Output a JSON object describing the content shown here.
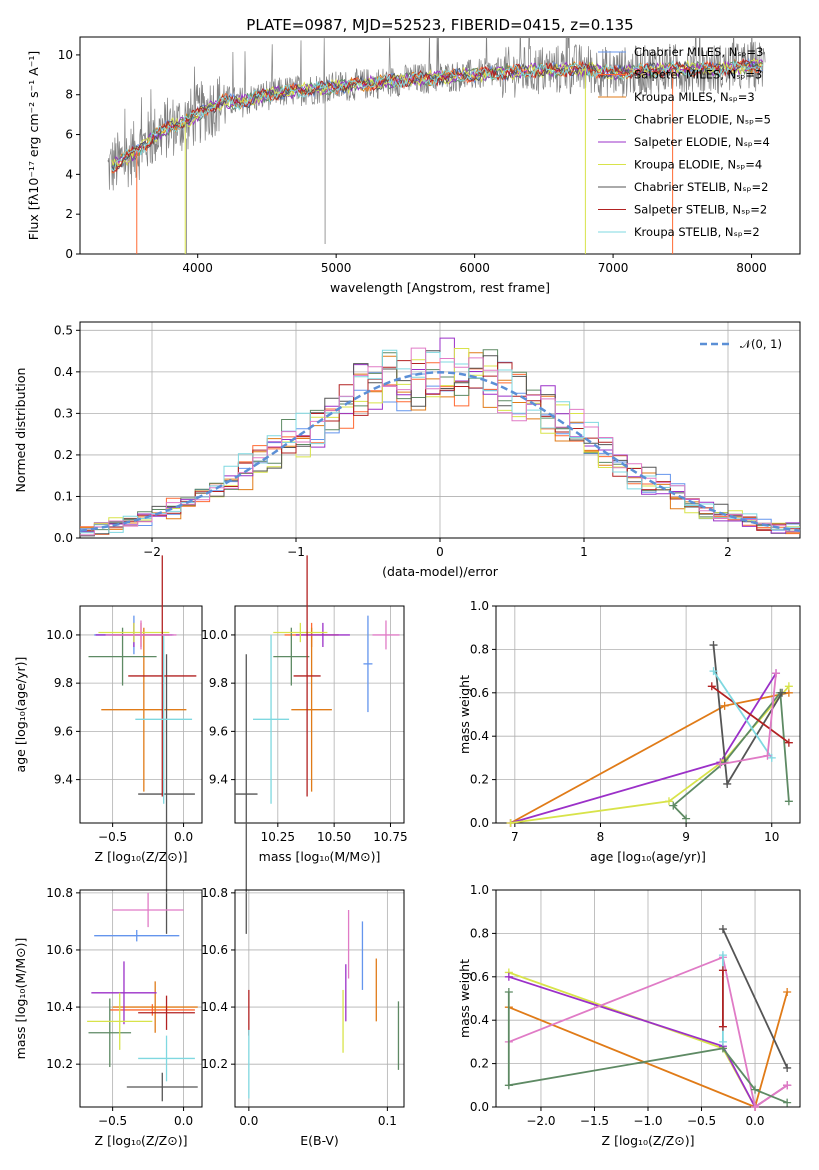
{
  "title": "PLATE=0987, MJD=52523, FIBERID=0415, z=0.135",
  "colors": {
    "chabrier_miles": "#6495ED",
    "salpeter_miles": "#FF6A33",
    "kroupa_miles": "#E07B18",
    "chabrier_elodie": "#5E8A64",
    "salpeter_elodie": "#9B30C8",
    "kroupa_elodie": "#D8E34A",
    "chabrier_stelib": "#555555",
    "salpeter_stelib": "#B22222",
    "kroupa_stelib": "#7FD8E0",
    "pink": "#E07BC6",
    "data": "#808080",
    "gauss": "#5B8FD6",
    "grid": "#B0B0B0"
  },
  "chart_data": [
    {
      "id": "spectrum",
      "type": "line",
      "title": "PLATE=0987, MJD=52523, FIBERID=0415, z=0.135",
      "xlabel": "wavelength [Angstrom, rest frame]",
      "ylabel": "Flux [fλ10⁻¹⁷ erg cm⁻² s⁻¹ A⁻¹]",
      "xlim": [
        3150,
        8350
      ],
      "ylim": [
        0,
        10.9
      ],
      "xticks": [
        "4000",
        "5000",
        "6000",
        "7000",
        "8000"
      ],
      "yticks": [
        "0",
        "2",
        "4",
        "6",
        "8",
        "10"
      ],
      "grid": false,
      "legend_position": "upper-right",
      "legend": [
        "Chabrier MILES, Nₛₚ=3",
        "Salpeter MILES, Nₛₚ=3",
        "Kroupa MILES, Nₛₚ=3",
        "Chabrier ELODIE, Nₛₚ=5",
        "Salpeter ELODIE, Nₛₚ=4",
        "Kroupa ELODIE, Nₛₚ=4",
        "Chabrier STELIB, Nₛₚ=2",
        "Salpeter STELIB, Nₛₚ=2",
        "Kroupa STELIB, Nₛₚ=2"
      ],
      "continuum": {
        "x": [
          3350,
          3400,
          3500,
          3600,
          3700,
          3800,
          3900,
          4000,
          4100,
          4200,
          4300,
          4500,
          4700,
          5000,
          5300,
          5600,
          6000,
          6400,
          6800,
          7000,
          7400,
          7800,
          8100
        ],
        "y": [
          4.2,
          4.5,
          4.9,
          5.4,
          6.0,
          6.4,
          6.6,
          7.0,
          7.4,
          7.7,
          7.6,
          8.0,
          8.2,
          8.4,
          8.6,
          8.8,
          9.0,
          9.2,
          9.3,
          9.1,
          9.3,
          9.3,
          9.5
        ]
      },
      "model_dropouts": [
        {
          "x": 3560,
          "series": "salpeter_miles"
        },
        {
          "x": 3910,
          "series": "kroupa_elodie"
        },
        {
          "x": 6800,
          "series": "kroupa_elodie"
        },
        {
          "x": 7430,
          "series": "salpeter_miles"
        }
      ]
    },
    {
      "id": "residuals",
      "type": "histogram",
      "xlabel": "(data-model)/error",
      "ylabel": "Normed distribution",
      "xlim": [
        -2.5,
        2.5
      ],
      "ylim": [
        0,
        0.52
      ],
      "xticks": [
        "−2",
        "−1",
        "0",
        "1",
        "2"
      ],
      "yticks": [
        "0.0",
        "0.1",
        "0.2",
        "0.3",
        "0.4",
        "0.5"
      ],
      "grid": true,
      "legend": [
        "𝒩(0, 1)"
      ],
      "bin_width": 0.1,
      "gaussian": {
        "mu": 0,
        "sigma": 1
      }
    },
    {
      "id": "age_vs_z",
      "type": "errorbar",
      "xlabel": "Z [log₁₀(Z/Z⊙)]",
      "ylabel": "age  [log₁₀(age/yr)]",
      "xlim": [
        -0.73,
        0.13
      ],
      "ylim": [
        9.22,
        10.12
      ],
      "xticks": [
        "−0.5",
        "0.0"
      ],
      "yticks": [
        "9.4",
        "9.6",
        "9.8",
        "10.0"
      ],
      "grid": true,
      "points": [
        {
          "series": "chabrier_miles",
          "x": -0.35,
          "xerr": 0.28,
          "y": 10.0,
          "yerr": 0.08
        },
        {
          "series": "salpeter_miles",
          "x": -0.3,
          "xerr": 0.2,
          "y": 10.0,
          "yerr": 0.05
        },
        {
          "series": "kroupa_miles",
          "x": -0.28,
          "xerr": 0.3,
          "y": 9.69,
          "yerr": 0.34
        },
        {
          "series": "chabrier_elodie",
          "x": -0.43,
          "xerr": 0.24,
          "y": 9.91,
          "yerr": 0.12
        },
        {
          "series": "salpeter_elodie",
          "x": -0.35,
          "xerr": 0.27,
          "y": 10.0,
          "yerr": 0.05
        },
        {
          "series": "kroupa_elodie",
          "x": -0.35,
          "xerr": 0.25,
          "y": 10.01,
          "yerr": 0.04
        },
        {
          "series": "chabrier_stelib",
          "x": -0.12,
          "xerr": 0.2,
          "y": 9.34,
          "yerr": 0.58
        },
        {
          "series": "salpeter_stelib",
          "x": -0.15,
          "xerr": 0.24,
          "y": 9.83,
          "yerr": 0.5
        },
        {
          "series": "kroupa_stelib",
          "x": -0.14,
          "xerr": 0.2,
          "y": 9.65,
          "yerr": 0.35
        },
        {
          "series": "pink",
          "x": -0.3,
          "xerr": 0.25,
          "y": 10.0,
          "yerr": 0.06
        }
      ]
    },
    {
      "id": "age_vs_mass",
      "type": "errorbar",
      "xlabel": "mass [log₁₀(M/M⊙)]",
      "ylabel": "",
      "xlim": [
        10.06,
        10.81
      ],
      "ylim": [
        9.22,
        10.12
      ],
      "xticks": [
        "10.25",
        "10.50",
        "10.75"
      ],
      "yticks": [
        "9.4",
        "9.6",
        "9.8",
        "10.0"
      ],
      "grid": true,
      "points": [
        {
          "series": "chabrier_miles",
          "x": 10.65,
          "xerr": 0.02,
          "y": 9.88,
          "yerr": 0.2
        },
        {
          "series": "salpeter_miles",
          "x": 10.4,
          "xerr": 0.12,
          "y": 10.0,
          "yerr": 0.05
        },
        {
          "series": "kroupa_miles",
          "x": 10.4,
          "xerr": 0.09,
          "y": 9.69,
          "yerr": 0.34
        },
        {
          "series": "chabrier_elodie",
          "x": 10.31,
          "xerr": 0.08,
          "y": 9.91,
          "yerr": 0.12
        },
        {
          "series": "salpeter_elodie",
          "x": 10.45,
          "xerr": 0.12,
          "y": 10.0,
          "yerr": 0.05
        },
        {
          "series": "kroupa_elodie",
          "x": 10.35,
          "xerr": 0.12,
          "y": 10.01,
          "yerr": 0.04
        },
        {
          "series": "chabrier_stelib",
          "x": 10.11,
          "xerr": 0.05,
          "y": 9.34,
          "yerr": 0.58
        },
        {
          "series": "salpeter_stelib",
          "x": 10.38,
          "xerr": 0.06,
          "y": 9.83,
          "yerr": 0.5
        },
        {
          "series": "kroupa_stelib",
          "x": 10.22,
          "xerr": 0.08,
          "y": 9.65,
          "yerr": 0.35
        },
        {
          "series": "pink",
          "x": 10.73,
          "xerr": 0.06,
          "y": 10.0,
          "yerr": 0.06
        }
      ]
    },
    {
      "id": "weight_vs_age",
      "type": "line",
      "xlabel": "age  [log₁₀(age/yr)]",
      "ylabel": "mass weight",
      "xlim": [
        6.78,
        10.33
      ],
      "ylim": [
        0,
        1
      ],
      "xticks": [
        "7",
        "8",
        "9",
        "10"
      ],
      "yticks": [
        "0.0",
        "0.2",
        "0.4",
        "0.6",
        "0.8",
        "1.0"
      ],
      "grid": true,
      "series": [
        {
          "key": "kroupa_miles",
          "x": [
            10.2,
            9.45,
            6.95
          ],
          "y": [
            0.6,
            0.54,
            0.0
          ]
        },
        {
          "key": "salpeter_elodie",
          "x": [
            10.05,
            9.4,
            6.95
          ],
          "y": [
            0.69,
            0.28,
            0.0
          ]
        },
        {
          "key": "kroupa_elodie",
          "x": [
            10.2,
            9.45,
            8.8,
            6.95
          ],
          "y": [
            0.63,
            0.29,
            0.1,
            0.0
          ]
        },
        {
          "key": "chabrier_elodie",
          "x": [
            10.2,
            10.1,
            9.45,
            8.85,
            9.0
          ],
          "y": [
            0.1,
            0.6,
            0.28,
            0.08,
            0.02
          ]
        },
        {
          "key": "chabrier_stelib",
          "x": [
            9.32,
            9.48,
            10.12
          ],
          "y": [
            0.82,
            0.18,
            0.6
          ]
        },
        {
          "key": "salpeter_stelib",
          "x": [
            9.3,
            10.2
          ],
          "y": [
            0.63,
            0.37
          ]
        },
        {
          "key": "kroupa_stelib",
          "x": [
            9.32,
            10.0
          ],
          "y": [
            0.7,
            0.3
          ]
        },
        {
          "key": "pink",
          "x": [
            9.4,
            9.95,
            10.05
          ],
          "y": [
            0.27,
            0.31,
            0.69
          ]
        }
      ]
    },
    {
      "id": "mass_vs_z",
      "type": "errorbar",
      "xlabel": "Z [log₁₀(Z/Z⊙)]",
      "ylabel": "mass [log₁₀(M/M⊙)]",
      "xlim": [
        -0.73,
        0.13
      ],
      "ylim": [
        10.05,
        10.81
      ],
      "xticks": [
        "−0.5",
        "0.0"
      ],
      "yticks": [
        "10.2",
        "10.4",
        "10.6",
        "10.8"
      ],
      "grid": true,
      "points": [
        {
          "series": "chabrier_miles",
          "x": -0.33,
          "xerr": 0.3,
          "y": 10.65,
          "yerr": 0.02
        },
        {
          "series": "salpeter_miles",
          "x": -0.22,
          "xerr": 0.3,
          "y": 10.39,
          "yerr": 0.02
        },
        {
          "series": "kroupa_miles",
          "x": -0.2,
          "xerr": 0.3,
          "y": 10.4,
          "yerr": 0.09
        },
        {
          "series": "chabrier_elodie",
          "x": -0.52,
          "xerr": 0.15,
          "y": 10.31,
          "yerr": 0.12
        },
        {
          "series": "salpeter_elodie",
          "x": -0.42,
          "xerr": 0.23,
          "y": 10.45,
          "yerr": 0.11
        },
        {
          "series": "kroupa_elodie",
          "x": -0.45,
          "xerr": 0.23,
          "y": 10.35,
          "yerr": 0.1
        },
        {
          "series": "chabrier_stelib",
          "x": -0.15,
          "xerr": 0.25,
          "y": 10.12,
          "yerr": 0.05
        },
        {
          "series": "salpeter_stelib",
          "x": -0.12,
          "xerr": 0.2,
          "y": 10.38,
          "yerr": 0.06
        },
        {
          "series": "kroupa_stelib",
          "x": -0.12,
          "xerr": 0.2,
          "y": 10.22,
          "yerr": 0.08
        },
        {
          "series": "pink",
          "x": -0.25,
          "xerr": 0.25,
          "y": 10.74,
          "yerr": 0.06
        }
      ]
    },
    {
      "id": "mass_vs_ebv",
      "type": "errorbar",
      "xlabel": "E(B-V)",
      "ylabel": "",
      "xlim": [
        -0.01,
        0.112
      ],
      "ylim": [
        10.05,
        10.81
      ],
      "xticks": [
        "0.0",
        "0.1"
      ],
      "yticks": [
        "10.2",
        "10.4",
        "10.6",
        "10.8"
      ],
      "grid": true,
      "points": [
        {
          "series": "chabrier_miles",
          "x": 0.082,
          "xerr": 0,
          "y": 10.58,
          "yerr": 0.12
        },
        {
          "series": "kroupa_miles",
          "x": 0.092,
          "xerr": 0,
          "y": 10.46,
          "yerr": 0.11
        },
        {
          "series": "salpeter_elodie",
          "x": 0.07,
          "xerr": 0,
          "y": 10.45,
          "yerr": 0.1
        },
        {
          "series": "kroupa_elodie",
          "x": 0.068,
          "xerr": 0,
          "y": 10.35,
          "yerr": 0.11
        },
        {
          "series": "chabrier_elodie",
          "x": 0.108,
          "xerr": 0,
          "y": 10.3,
          "yerr": 0.12
        },
        {
          "series": "salpeter_stelib",
          "x": 0.0,
          "xerr": 0,
          "y": 10.38,
          "yerr": 0.08
        },
        {
          "series": "kroupa_stelib",
          "x": 0.0,
          "xerr": 0,
          "y": 10.2,
          "yerr": 0.12
        },
        {
          "series": "pink",
          "x": 0.072,
          "xerr": 0,
          "y": 10.62,
          "yerr": 0.12
        }
      ]
    },
    {
      "id": "weight_vs_z",
      "type": "line",
      "xlabel": "Z [log₁₀(Z/Z⊙)]",
      "ylabel": "mass weight",
      "xlim": [
        -2.42,
        0.42
      ],
      "ylim": [
        0,
        1
      ],
      "xticks": [
        "−2.0",
        "−1.5",
        "−1.0",
        "−0.5",
        "0.0"
      ],
      "yticks": [
        "0.0",
        "0.2",
        "0.4",
        "0.6",
        "0.8",
        "1.0"
      ],
      "grid": true,
      "series": [
        {
          "key": "kroupa_miles",
          "x": [
            0.3,
            0.0,
            -2.3
          ],
          "y": [
            0.53,
            0.0,
            0.46
          ]
        },
        {
          "key": "kroupa_elodie",
          "x": [
            -2.3,
            -0.3,
            0.0,
            0.3
          ],
          "y": [
            0.62,
            0.27,
            0.0,
            0.1
          ]
        },
        {
          "key": "salpeter_elodie",
          "x": [
            -2.3,
            -0.3,
            0.0,
            0.3
          ],
          "y": [
            0.6,
            0.28,
            0.0,
            0.1
          ]
        },
        {
          "key": "pink",
          "x": [
            -2.3,
            -0.3,
            0.0,
            0.3
          ],
          "y": [
            0.3,
            0.69,
            0.0,
            0.1
          ]
        },
        {
          "key": "chabrier_elodie",
          "x": [
            -2.3,
            -2.3,
            -0.3,
            0.0,
            0.3
          ],
          "y": [
            0.53,
            0.1,
            0.27,
            0.08,
            0.02
          ]
        },
        {
          "key": "chabrier_stelib",
          "x": [
            -0.3,
            0.3
          ],
          "y": [
            0.82,
            0.18
          ]
        },
        {
          "key": "kroupa_stelib",
          "x": [
            -0.3,
            -0.3
          ],
          "y": [
            0.7,
            0.3
          ]
        },
        {
          "key": "salpeter_stelib",
          "x": [
            -0.3,
            -0.3
          ],
          "y": [
            0.63,
            0.37
          ]
        }
      ]
    }
  ]
}
